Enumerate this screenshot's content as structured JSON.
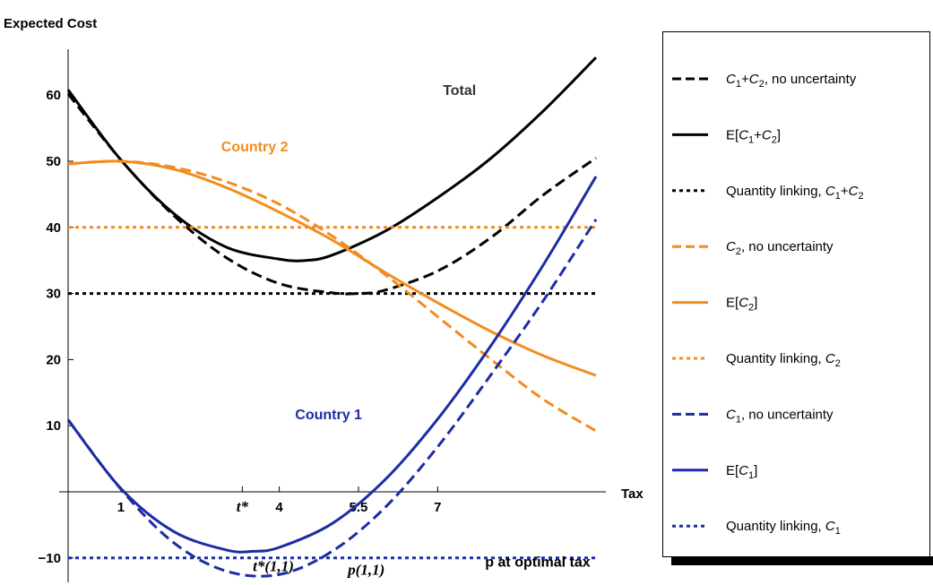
{
  "chart_data": {
    "type": "line",
    "ylabel": "Expected Cost",
    "xlabel": "Tax",
    "xlim": [
      -0.1,
      10.3
    ],
    "ylim": [
      -13.5,
      66
    ],
    "y_ticks": [
      {
        "value": -10,
        "label": "−10"
      },
      {
        "value": 10,
        "label": "10"
      },
      {
        "value": 20,
        "label": "20"
      },
      {
        "value": 30,
        "label": "30"
      },
      {
        "value": 40,
        "label": "40"
      },
      {
        "value": 50,
        "label": "50"
      },
      {
        "value": 60,
        "label": "60"
      }
    ],
    "x_ticks": [
      {
        "value": 1,
        "label": "1"
      },
      {
        "value": 3.3,
        "label": "t*"
      },
      {
        "value": 4,
        "label": "4"
      },
      {
        "value": 5.5,
        "label": "5.5"
      },
      {
        "value": 7,
        "label": "7"
      }
    ],
    "annotations": [
      {
        "text": "Total",
        "x": 7.1,
        "y": 60,
        "color": "#333333",
        "style": "sans"
      },
      {
        "text": "Country 2",
        "x": 2.9,
        "y": 51.5,
        "color": "#f28c1e",
        "style": "sans"
      },
      {
        "text": "Country 1",
        "x": 4.3,
        "y": 11,
        "color": "#1c2ca4",
        "style": "sans"
      },
      {
        "text": "t*(1,1)",
        "x": 3.5,
        "y": -12,
        "color": "#000000",
        "style": "serif"
      },
      {
        "text": "p(1,1)",
        "x": 5.3,
        "y": -12.5,
        "color": "#000000",
        "style": "serif"
      },
      {
        "text": "p at optimal tax",
        "x": 7.9,
        "y": -11.3,
        "color": "#000000",
        "style": "sans"
      }
    ],
    "series": [
      {
        "name": "C1+C2, no uncertainty",
        "color": "#000000",
        "dash": "dashed",
        "x": [
          0,
          1,
          2,
          3,
          4,
          5,
          5.5,
          6,
          7,
          8,
          9,
          10
        ],
        "y": [
          60.2,
          50.2,
          41.8,
          35.4,
          31.5,
          30.1,
          30.0,
          30.5,
          33.4,
          38.4,
          44.9,
          50.5
        ]
      },
      {
        "name": "E[C1+C2]",
        "color": "#000000",
        "dash": "solid",
        "x": [
          0,
          1,
          2,
          3,
          4,
          4.5,
          5,
          6,
          7,
          8,
          9,
          10
        ],
        "y": [
          60.8,
          50.2,
          42.1,
          37.0,
          35.2,
          35.0,
          35.8,
          39.4,
          44.5,
          50.4,
          57.6,
          65.7
        ]
      },
      {
        "name": "Quantity linking, C1+C2",
        "color": "#000000",
        "dash": "dotted",
        "x": [
          0,
          10
        ],
        "y": [
          30,
          30
        ]
      },
      {
        "name": "C2, no uncertainty",
        "color": "#f28c1e",
        "dash": "dashed",
        "x": [
          0,
          1,
          2,
          3,
          4,
          5,
          6,
          7,
          8,
          9,
          10
        ],
        "y": [
          49.6,
          50.0,
          49.1,
          46.9,
          43.5,
          38.7,
          32.9,
          26.5,
          20.1,
          14.0,
          9.2
        ]
      },
      {
        "name": "E[C2]",
        "color": "#f28c1e",
        "dash": "solid",
        "x": [
          0,
          1,
          2,
          3,
          4,
          5,
          6,
          7,
          8,
          9,
          10
        ],
        "y": [
          49.6,
          50.0,
          48.8,
          46.0,
          42.3,
          38.1,
          33.2,
          28.6,
          24.3,
          20.6,
          17.6
        ]
      },
      {
        "name": "Quantity linking, C2",
        "color": "#f28c1e",
        "dash": "dotted",
        "x": [
          0,
          10
        ],
        "y": [
          40,
          40
        ]
      },
      {
        "name": "C1, no uncertainty",
        "color": "#1c2ca4",
        "dash": "dashed",
        "x": [
          0,
          1,
          2,
          3,
          4,
          5,
          6,
          7,
          8,
          9,
          10
        ],
        "y": [
          10.9,
          0.4,
          -7.7,
          -12.0,
          -12.5,
          -9.0,
          -2.4,
          6.8,
          17.6,
          28.9,
          41.2
        ]
      },
      {
        "name": "E[C1]",
        "color": "#1c2ca4",
        "dash": "solid",
        "x": [
          0,
          1,
          2,
          3,
          3.5,
          4,
          5,
          6,
          7,
          8,
          9,
          10
        ],
        "y": [
          10.9,
          0.5,
          -6.0,
          -8.8,
          -9.0,
          -8.4,
          -4.8,
          1.8,
          11.0,
          22.0,
          34.3,
          47.7
        ]
      },
      {
        "name": "Quantity linking, C1",
        "color": "#1c2ca4",
        "dash": "dotted",
        "x": [
          0,
          10
        ],
        "y": [
          -10,
          -10
        ]
      }
    ],
    "legend": {
      "placement": "right",
      "entries": [
        {
          "color": "#000000",
          "dash": "dashed",
          "parts": [
            {
              "t": "C",
              "i": true
            },
            {
              "t": "1",
              "sub": true
            },
            {
              "t": "+"
            },
            {
              "t": "C",
              "i": true
            },
            {
              "t": "2",
              "sub": true
            },
            {
              "t": ", no uncertainty"
            }
          ]
        },
        {
          "color": "#000000",
          "dash": "solid",
          "parts": [
            {
              "t": "E["
            },
            {
              "t": "C",
              "i": true
            },
            {
              "t": "1",
              "sub": true
            },
            {
              "t": "+"
            },
            {
              "t": "C",
              "i": true
            },
            {
              "t": "2",
              "sub": true
            },
            {
              "t": "]"
            }
          ]
        },
        {
          "color": "#000000",
          "dash": "dotted",
          "parts": [
            {
              "t": "Quantity linking, "
            },
            {
              "t": "C",
              "i": true
            },
            {
              "t": "1",
              "sub": true
            },
            {
              "t": "+"
            },
            {
              "t": "C",
              "i": true
            },
            {
              "t": "2",
              "sub": true
            }
          ]
        },
        {
          "color": "#f28c1e",
          "dash": "dashed",
          "parts": [
            {
              "t": "C",
              "i": true
            },
            {
              "t": "2",
              "sub": true
            },
            {
              "t": ", no uncertainty"
            }
          ]
        },
        {
          "color": "#f28c1e",
          "dash": "solid",
          "parts": [
            {
              "t": "E["
            },
            {
              "t": "C",
              "i": true
            },
            {
              "t": "2",
              "sub": true
            },
            {
              "t": "]"
            }
          ]
        },
        {
          "color": "#f28c1e",
          "dash": "dotted",
          "parts": [
            {
              "t": "Quantity linking, "
            },
            {
              "t": "C",
              "i": true
            },
            {
              "t": "2",
              "sub": true
            }
          ]
        },
        {
          "color": "#1c2ca4",
          "dash": "dashed",
          "parts": [
            {
              "t": "C",
              "i": true
            },
            {
              "t": "1",
              "sub": true
            },
            {
              "t": ", no uncertainty"
            }
          ]
        },
        {
          "color": "#1c2ca4",
          "dash": "solid",
          "parts": [
            {
              "t": "E["
            },
            {
              "t": "C",
              "i": true
            },
            {
              "t": "1",
              "sub": true
            },
            {
              "t": "]"
            }
          ]
        },
        {
          "color": "#1c2ca4",
          "dash": "dotted",
          "parts": [
            {
              "t": "Quantity linking, "
            },
            {
              "t": "C",
              "i": true
            },
            {
              "t": "1",
              "sub": true
            }
          ]
        }
      ]
    }
  }
}
